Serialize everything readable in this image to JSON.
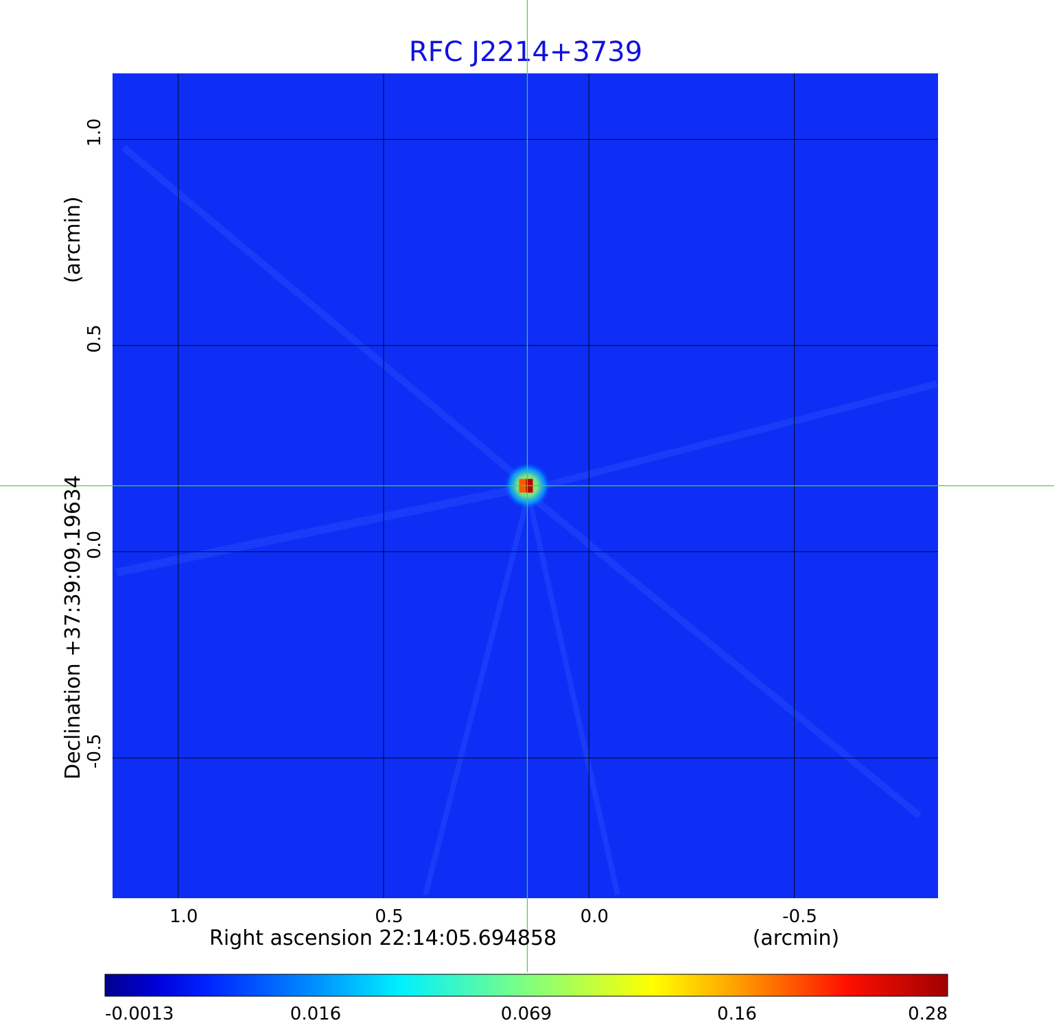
{
  "chart_data": {
    "type": "heatmap",
    "title": "RFC J2214+3739",
    "xlabel": "Right ascension  22:14:05.694858",
    "xunit": "(arcmin)",
    "ylabel": "Declination  +37:39:09.19634",
    "yunit": "(arcmin)",
    "xlim": [
      1.16,
      -0.85
    ],
    "ylim": [
      -0.84,
      1.16
    ],
    "x_ticks": [
      {
        "value": 1.0,
        "label": "1.0"
      },
      {
        "value": 0.5,
        "label": "0.5"
      },
      {
        "value": 0.0,
        "label": "0.0"
      },
      {
        "value": -0.5,
        "label": "-0.5"
      }
    ],
    "y_ticks": [
      {
        "value": 1.0,
        "label": "1.0"
      },
      {
        "value": 0.5,
        "label": "0.5"
      },
      {
        "value": 0.0,
        "label": "0.0"
      },
      {
        "value": -0.5,
        "label": "-0.5"
      }
    ],
    "grid": true,
    "crosshair": {
      "x": 0.15,
      "y": 0.16
    },
    "source_peak": {
      "x": 0.15,
      "y": 0.16,
      "value": 0.28
    },
    "colorbar": {
      "colormap": "jet",
      "min": -0.0013,
      "max": 0.28,
      "ticks": [
        {
          "value": -0.0013,
          "label": "-0.0013"
        },
        {
          "value": 0.016,
          "label": "0.016"
        },
        {
          "value": 0.069,
          "label": "0.069"
        },
        {
          "value": 0.16,
          "label": "0.16"
        },
        {
          "value": 0.28,
          "label": "0.28"
        }
      ]
    },
    "colors": {
      "title": "#1010e0",
      "background_field": "#0f2ef5",
      "crosshair": "#33dd33",
      "grid": "#000000"
    }
  }
}
